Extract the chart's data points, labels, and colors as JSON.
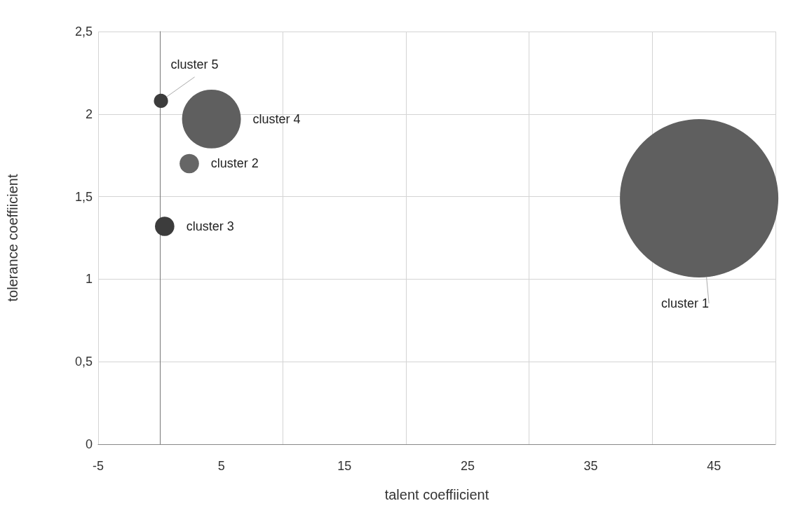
{
  "chart_data": {
    "type": "bubble",
    "xlabel": "talent coeffiicient",
    "ylabel": "tolerance coeffiicient",
    "series": [
      {
        "name": "cluster 1",
        "color": "#5f5f5f",
        "x": [
          43.8
        ],
        "values": [
          1.49
        ],
        "sizes": [
          1
        ]
      },
      {
        "name": "cluster 2",
        "color": "#666666",
        "x": [
          2.4
        ],
        "values": [
          1.7
        ],
        "sizes": [
          0.015
        ]
      },
      {
        "name": "cluster 3",
        "color": "#3c3c3c",
        "x": [
          0.4
        ],
        "values": [
          1.32
        ],
        "sizes": [
          0.015
        ]
      },
      {
        "name": "cluster 4",
        "color": "#5f5f5f",
        "x": [
          4.2
        ],
        "values": [
          1.97
        ],
        "sizes": [
          0.138
        ]
      },
      {
        "name": "cluster 5",
        "color": "#3c3c3c",
        "x": [
          0.1
        ],
        "values": [
          2.08
        ],
        "sizes": [
          0.008
        ]
      }
    ],
    "xlim": [
      -5,
      50
    ],
    "xticks": [
      -5,
      5,
      15,
      25,
      35,
      45
    ],
    "ylim": [
      0,
      2.5
    ],
    "yticks": [
      0,
      {
        "value": 0.5,
        "label": "0,5"
      },
      1,
      {
        "value": 1.5,
        "label": "1,5"
      },
      2,
      {
        "value": 2.5,
        "label": "2,5"
      }
    ],
    "grid": true,
    "legend": false
  }
}
